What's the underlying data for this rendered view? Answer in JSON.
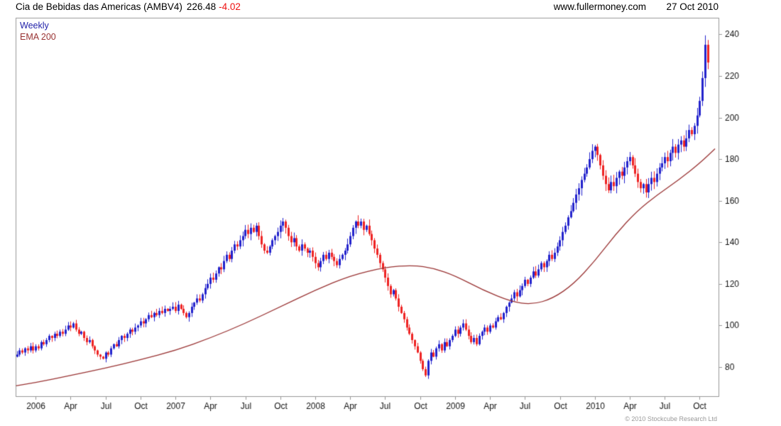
{
  "header": {
    "title": "Cia de Bebidas das Americas (AMBV4)",
    "price": "226.48",
    "change": "-4.02",
    "site": "www.fullermoney.com",
    "date": "27 Oct 2010"
  },
  "legend": {
    "series": "Weekly",
    "overlay": "EMA 200"
  },
  "footer": {
    "copyright": "© 2010 Stockcube Research Ltd"
  },
  "colors": {
    "up_candle": "#2222cc",
    "down_candle": "#ee2222",
    "ema_line": "#993333",
    "legend_series": "#2222aa",
    "legend_overlay": "#993333",
    "change_text": "#ee1111",
    "axis_border": "#999999",
    "axis_text": "#111111",
    "footer_text": "#9a9a9a"
  },
  "chart_data": {
    "type": "candlestick",
    "title": "Cia de Bebidas das Americas (AMBV4) weekly candlestick chart with 200-period EMA",
    "timeframe": "Weekly",
    "last_close": 226.48,
    "last_change": -4.02,
    "x_start": 2005.865,
    "x_step_years": 0.01923077,
    "x_axis": {
      "min": 2005.857,
      "max": 2010.885,
      "labels": [
        {
          "x": 2006.0,
          "label": "2006"
        },
        {
          "x": 2006.25,
          "label": "Apr"
        },
        {
          "x": 2006.5,
          "label": "Jul"
        },
        {
          "x": 2006.75,
          "label": "Oct"
        },
        {
          "x": 2007.0,
          "label": "2007"
        },
        {
          "x": 2007.25,
          "label": "Apr"
        },
        {
          "x": 2007.5,
          "label": "Jul"
        },
        {
          "x": 2007.75,
          "label": "Oct"
        },
        {
          "x": 2008.0,
          "label": "2008"
        },
        {
          "x": 2008.25,
          "label": "Apr"
        },
        {
          "x": 2008.5,
          "label": "Jul"
        },
        {
          "x": 2008.75,
          "label": "Oct"
        },
        {
          "x": 2009.0,
          "label": "2009"
        },
        {
          "x": 2009.25,
          "label": "Apr"
        },
        {
          "x": 2009.5,
          "label": "Jul"
        },
        {
          "x": 2009.75,
          "label": "Oct"
        },
        {
          "x": 2010.0,
          "label": "2010"
        },
        {
          "x": 2010.25,
          "label": "Apr"
        },
        {
          "x": 2010.5,
          "label": "Jul"
        },
        {
          "x": 2010.75,
          "label": "Oct"
        }
      ]
    },
    "price_axis": {
      "min": 66,
      "max": 248,
      "ticks": [
        80,
        100,
        120,
        140,
        160,
        180,
        200,
        220,
        240
      ]
    },
    "closes": [
      86,
      88,
      87,
      89,
      88,
      90,
      88,
      90,
      89,
      92,
      91,
      93,
      95,
      94,
      96,
      95,
      97,
      96,
      98,
      100,
      99,
      101,
      98,
      96,
      97,
      94,
      92,
      93,
      90,
      88,
      86,
      85,
      84,
      87,
      86,
      89,
      91,
      90,
      93,
      95,
      94,
      96,
      98,
      97,
      99,
      100,
      102,
      101,
      103,
      105,
      104,
      106,
      105,
      107,
      106,
      108,
      107,
      108,
      109,
      107,
      110,
      108,
      106,
      104,
      106,
      109,
      111,
      113,
      112,
      115,
      118,
      120,
      123,
      122,
      125,
      128,
      127,
      131,
      134,
      132,
      136,
      139,
      138,
      141,
      143,
      146,
      144,
      147,
      145,
      148,
      143,
      139,
      136,
      135,
      138,
      141,
      143,
      145,
      148,
      150,
      147,
      143,
      140,
      142,
      138,
      136,
      139,
      137,
      135,
      136,
      133,
      130,
      128,
      131,
      134,
      132,
      135,
      133,
      131,
      129,
      132,
      134,
      136,
      139,
      143,
      147,
      150,
      148,
      150,
      146,
      148,
      144,
      141,
      137,
      134,
      130,
      127,
      123,
      119,
      115,
      117,
      113,
      109,
      106,
      103,
      99,
      96,
      93,
      90,
      87,
      83,
      79,
      76,
      83,
      87,
      85,
      89,
      91,
      88,
      92,
      90,
      93,
      95,
      98,
      96,
      99,
      101,
      98,
      95,
      92,
      94,
      91,
      95,
      97,
      99,
      97,
      100,
      99,
      102,
      104,
      103,
      106,
      109,
      111,
      113,
      116,
      114,
      117,
      119,
      122,
      120,
      123,
      126,
      124,
      127,
      130,
      128,
      131,
      134,
      132,
      135,
      138,
      141,
      145,
      148,
      152,
      155,
      159,
      163,
      166,
      170,
      173,
      176,
      180,
      184,
      186,
      182,
      177,
      172,
      168,
      165,
      169,
      167,
      171,
      174,
      172,
      176,
      179,
      181,
      177,
      173,
      169,
      166,
      168,
      164,
      168,
      171,
      169,
      173,
      176,
      178,
      181,
      179,
      183,
      186,
      183,
      187,
      189,
      186,
      190,
      194,
      192,
      196,
      201,
      208,
      219,
      235,
      226.48
    ],
    "ema200": {
      "label": "EMA 200",
      "points": [
        [
          2005.86,
          71
        ],
        [
          2006.0,
          72.5
        ],
        [
          2006.25,
          76
        ],
        [
          2006.5,
          79.5
        ],
        [
          2006.75,
          83.5
        ],
        [
          2007.0,
          88
        ],
        [
          2007.25,
          94
        ],
        [
          2007.5,
          101
        ],
        [
          2007.75,
          109
        ],
        [
          2008.0,
          117
        ],
        [
          2008.25,
          124
        ],
        [
          2008.5,
          128
        ],
        [
          2008.7,
          129
        ],
        [
          2008.85,
          127.5
        ],
        [
          2009.0,
          124
        ],
        [
          2009.2,
          117
        ],
        [
          2009.4,
          111.5
        ],
        [
          2009.55,
          110
        ],
        [
          2009.7,
          113
        ],
        [
          2009.85,
          120
        ],
        [
          2010.0,
          131
        ],
        [
          2010.15,
          144
        ],
        [
          2010.3,
          155
        ],
        [
          2010.45,
          163
        ],
        [
          2010.6,
          170
        ],
        [
          2010.75,
          178
        ],
        [
          2010.86,
          185
        ]
      ]
    }
  }
}
